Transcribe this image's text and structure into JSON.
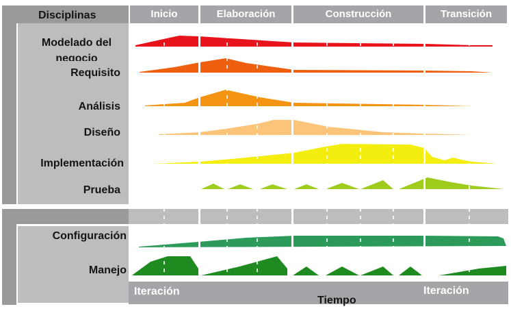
{
  "header": {
    "disciplines_title": "Disciplinas",
    "phases": [
      "Inicio",
      "Elaboración",
      "Construcción",
      "Transición"
    ]
  },
  "disciplines": {
    "business_modeling": "Modelado del negocio",
    "requirements": "Requisito",
    "analysis": "Análisis",
    "design": "Diseño",
    "implementation": "Implementación",
    "test": "Prueba",
    "configuration": "Configuración",
    "management": "Manejo"
  },
  "footer": {
    "iteration_left": "Iteración",
    "iteration_right": "Iteración",
    "time": "Tiempo"
  },
  "colors": {
    "business_modeling": "#e8141c",
    "requirements": "#ee6010",
    "analysis": "#f59412",
    "design": "#fbc478",
    "implementation": "#f4ee10",
    "test": "#9ecb1c",
    "configuration": "#2c9a58",
    "management": "#1f8a1f",
    "panel_gray": "#9a9a9a",
    "light_gray": "#bdbdbd",
    "header_gray": "#a3a5a8"
  }
}
